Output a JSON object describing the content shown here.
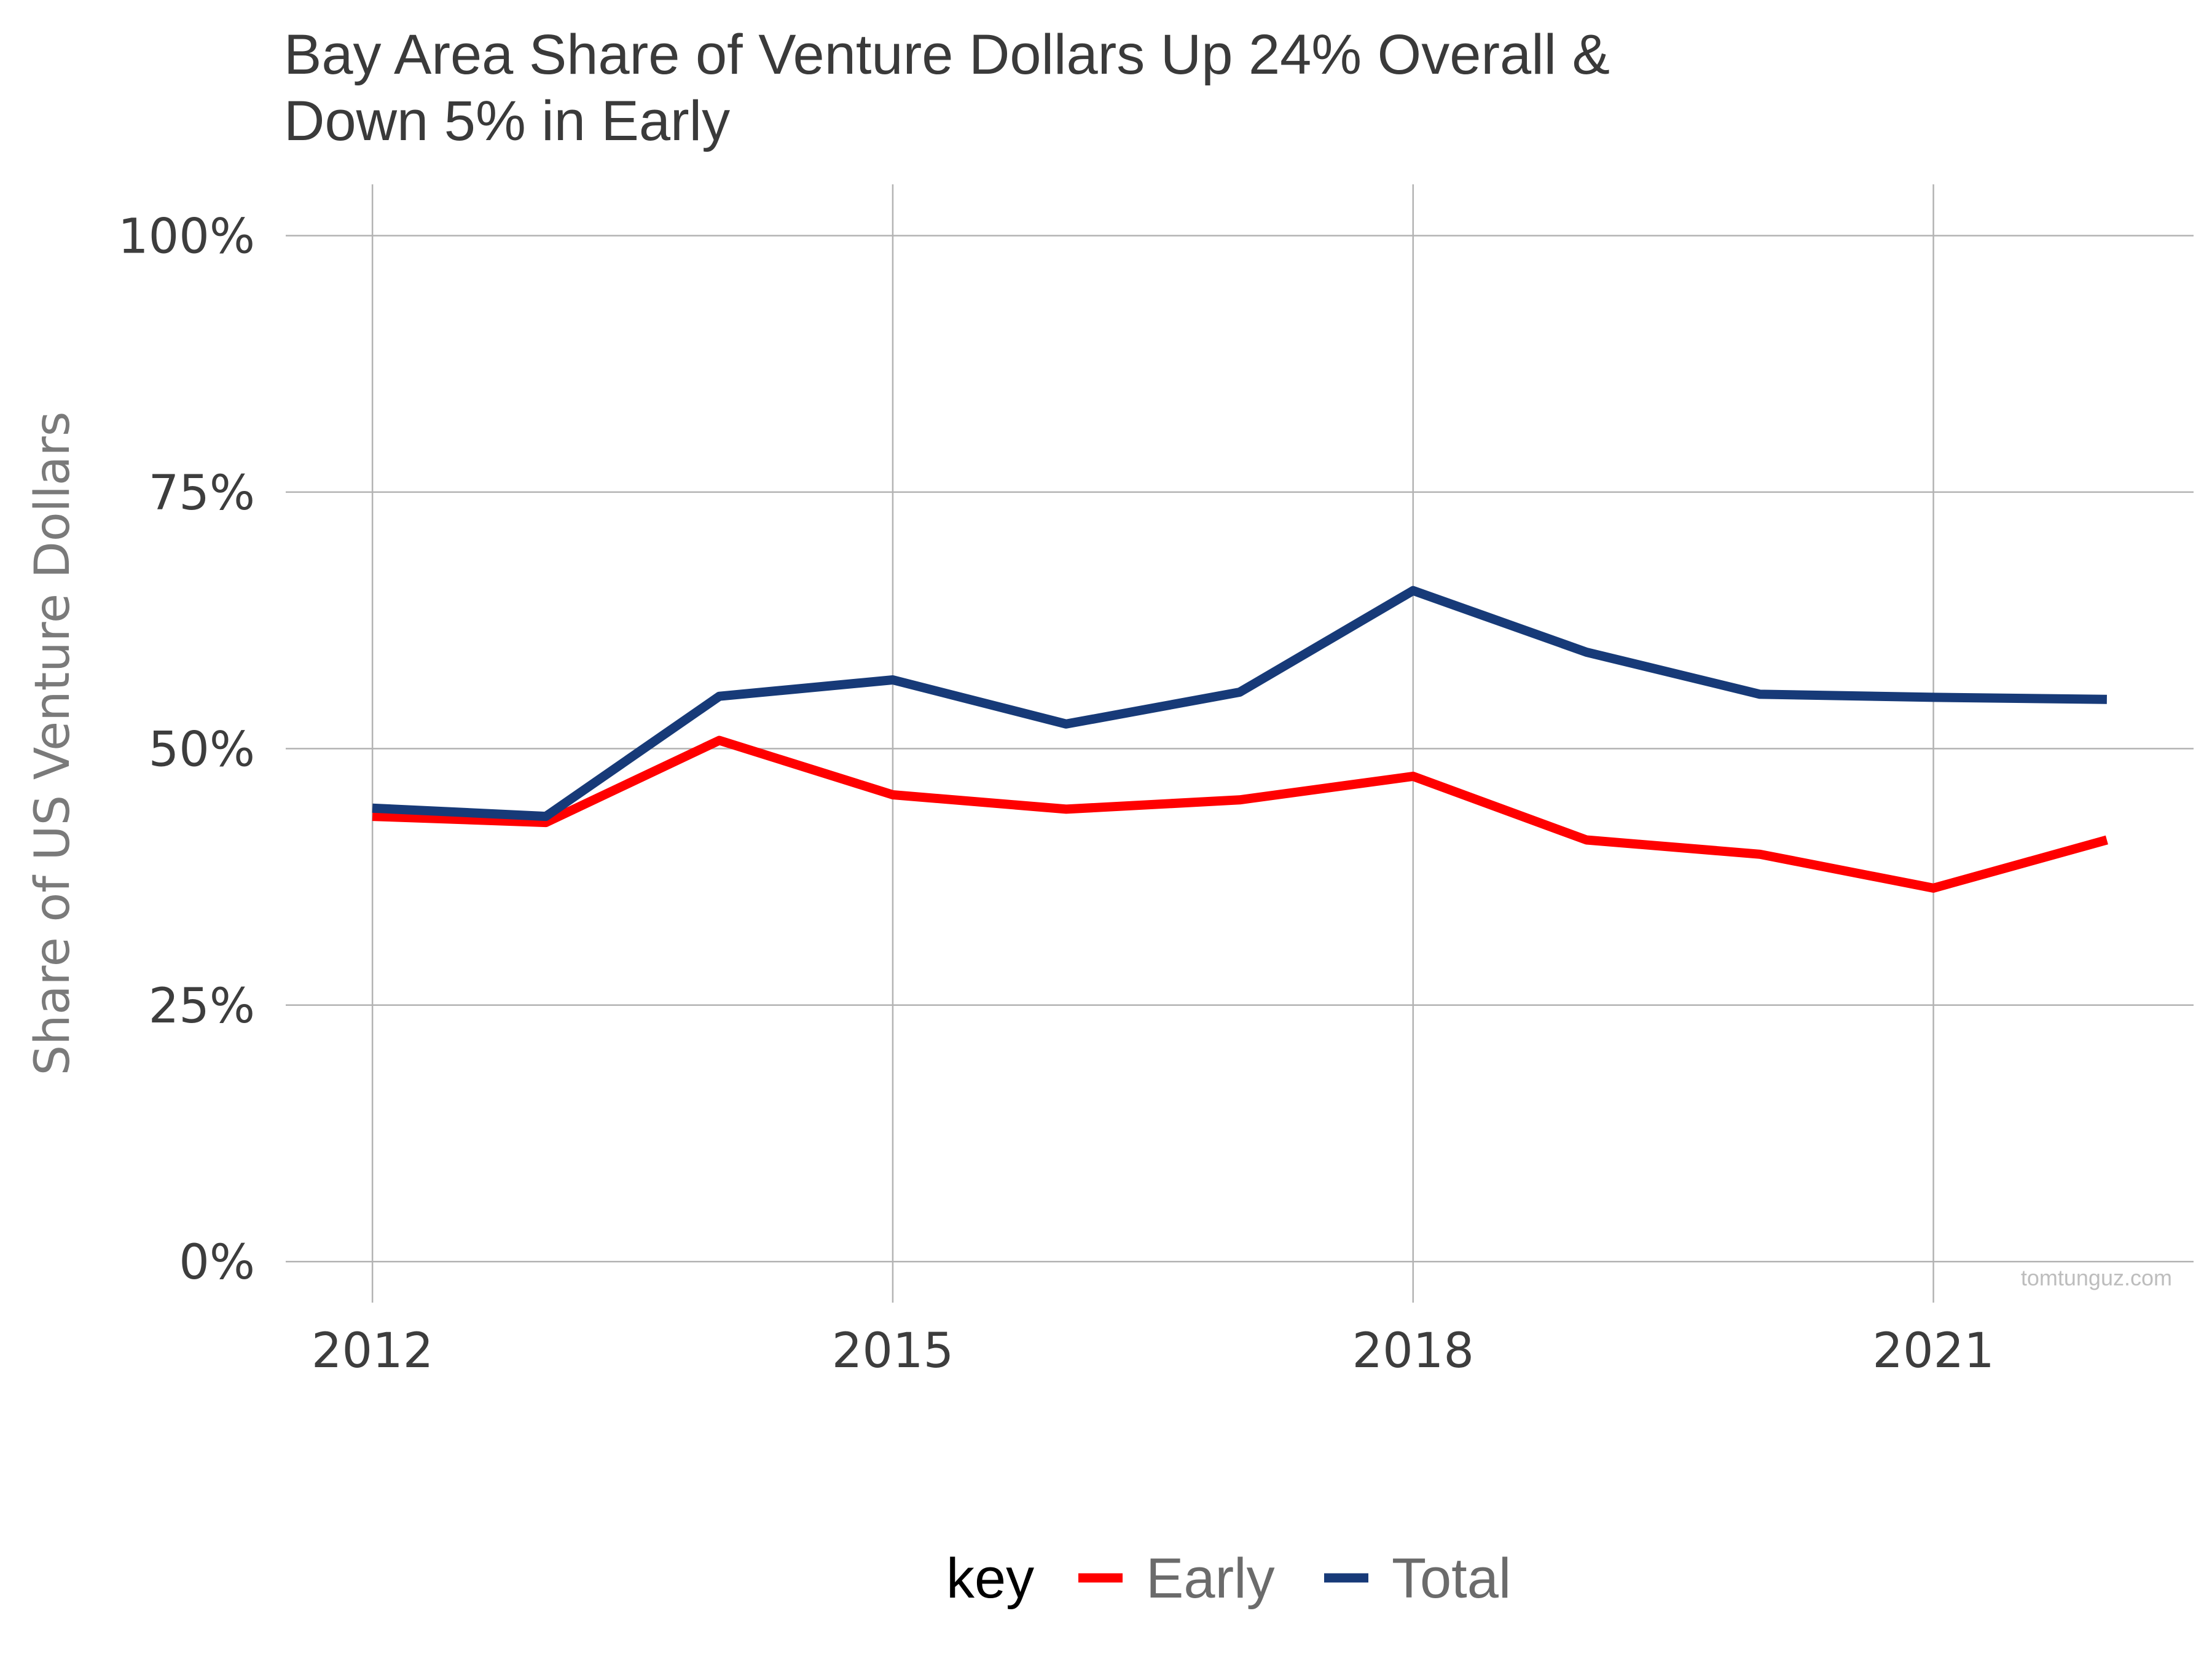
{
  "chart_data": {
    "type": "line",
    "title_lines": [
      "Bay Area Share of Venture Dollars Up 24% Overall &",
      "Down 5% in Early"
    ],
    "xlabel": "",
    "ylabel": "Share of US Venture Dollars",
    "x": [
      2012,
      2013,
      2014,
      2015,
      2016,
      2017,
      2018,
      2019,
      2020,
      2021,
      2022
    ],
    "x_ticks": [
      2012,
      2015,
      2018,
      2021
    ],
    "x_tick_labels": [
      "2012",
      "2015",
      "2018",
      "2021"
    ],
    "xlim": [
      2011.5,
      2022.5
    ],
    "ylim": [
      -0.04,
      1.05
    ],
    "y_ticks": [
      0,
      0.25,
      0.5,
      0.75,
      1.0
    ],
    "y_tick_labels": [
      "0%",
      "25%",
      "50%",
      "75%",
      "100%"
    ],
    "grid": true,
    "legend": {
      "title": "key",
      "position": "bottom",
      "entries": [
        "Early",
        "Total"
      ]
    },
    "series": [
      {
        "name": "Early",
        "color": "#ff0000",
        "values": [
          0.434,
          0.428,
          0.508,
          0.455,
          0.441,
          0.45,
          0.473,
          0.411,
          0.397,
          0.364,
          0.411
        ]
      },
      {
        "name": "Total",
        "color": "#173a78",
        "values": [
          0.442,
          0.434,
          0.551,
          0.567,
          0.524,
          0.555,
          0.654,
          0.594,
          0.553,
          0.55,
          0.548
        ]
      }
    ],
    "watermark": "tomtunguz.com"
  }
}
